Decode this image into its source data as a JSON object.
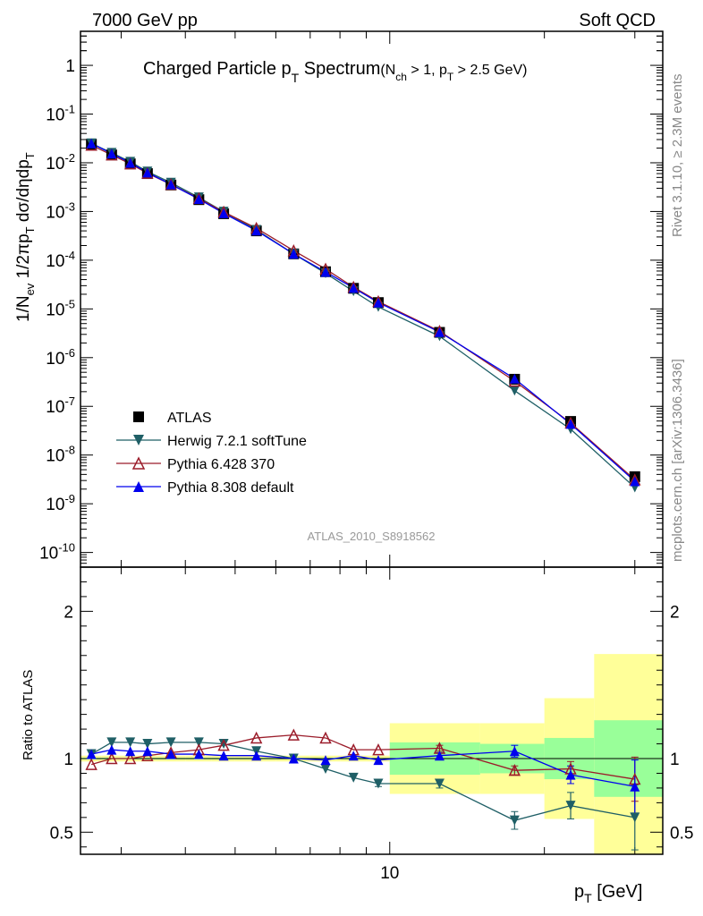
{
  "header": {
    "left": "7000 GeV pp",
    "right": "Soft QCD"
  },
  "title": {
    "main_pre": "Charged Particle p",
    "main_sub": "T",
    "main_post": " Spectrum",
    "cond_a": "(N",
    "cond_a_sub": "ch",
    "cond_b": " > 1, p",
    "cond_b_sub": "T",
    "cond_c": " > 2.5 GeV)"
  },
  "side_labels": {
    "rivet": "Rivet 3.1.10, ≥ 2.3M events",
    "mcplots": "mcplots.cern.ch [arXiv:1306.3436]"
  },
  "analysis_id": "ATLAS_2010_S8918562",
  "ylabel_main": "1/N_ev 1/2πp_T dσ/dηdp_T",
  "ylabel_ratio": "Ratio to ATLAS",
  "xlabel": "p_T  [GeV]",
  "legend": [
    {
      "label": "ATLAS",
      "marker": "square",
      "color": "#000000"
    },
    {
      "label": "Herwig 7.2.1 softTune",
      "marker": "triangle-down",
      "color": "#1f5f66"
    },
    {
      "label": "Pythia 6.428 370",
      "marker": "triangle-open",
      "color": "#9b1c2a"
    },
    {
      "label": "Pythia 8.308 default",
      "marker": "triangle-up",
      "color": "#0000ee"
    }
  ],
  "chart_data": {
    "type": "scatter",
    "x_scale": "log",
    "y_scale": "log",
    "xlim": [
      2.5,
      34
    ],
    "ylim": [
      5e-11,
      5
    ],
    "ratio_ylim": [
      0.35,
      2.3
    ],
    "x_tick_labels": [
      "10"
    ],
    "y_tick_labels": [
      "1",
      "10^-1",
      "10^-2",
      "10^-3",
      "10^-4",
      "10^-5",
      "10^-6",
      "10^-7",
      "10^-8",
      "10^-9",
      "10^-10"
    ],
    "ratio_tick_labels": [
      "2",
      "1",
      "0.5"
    ],
    "x": [
      2.625,
      2.875,
      3.125,
      3.375,
      3.75,
      4.25,
      4.75,
      5.5,
      6.5,
      7.5,
      8.5,
      9.5,
      12.5,
      17.5,
      22.5,
      30
    ],
    "series": [
      {
        "name": "ATLAS",
        "values": [
          0.024,
          0.0145,
          0.0095,
          0.006,
          0.0035,
          0.00175,
          0.0009,
          0.0004,
          0.000135,
          5.8e-05,
          2.65e-05,
          1.35e-05,
          3.3e-06,
          3.6e-07,
          4.9e-08,
          3.6e-09
        ]
      },
      {
        "name": "Herwig 7.2.1 softTune",
        "values": [
          0.025,
          0.016,
          0.0105,
          0.0066,
          0.0039,
          0.00195,
          0.00099,
          0.00042,
          0.000135,
          5.4e-05,
          2.3e-05,
          1.1e-05,
          2.75e-06,
          2.1e-07,
          3.4e-08,
          2.15e-09
        ]
      },
      {
        "name": "Pythia 6.428 370",
        "values": [
          0.023,
          0.0145,
          0.0095,
          0.0061,
          0.0036,
          0.00185,
          0.00098,
          0.000455,
          0.000157,
          6.6e-05,
          2.8e-05,
          1.42e-05,
          3.5e-06,
          3.3e-07,
          4.55e-08,
          3.1e-09
        ]
      },
      {
        "name": "Pythia 8.308 default",
        "values": [
          0.025,
          0.0155,
          0.01,
          0.0063,
          0.0036,
          0.0018,
          0.00092,
          0.000405,
          0.000135,
          5.75e-05,
          2.7e-05,
          1.35e-05,
          3.35e-06,
          3.7e-07,
          4.35e-08,
          2.9e-09
        ]
      }
    ],
    "ratio_series": [
      {
        "name": "Herwig 7.2.1 softTune",
        "values": [
          1.03,
          1.11,
          1.11,
          1.1,
          1.11,
          1.11,
          1.1,
          1.05,
          1.0,
          0.93,
          0.87,
          0.83,
          0.83,
          0.58,
          0.68,
          0.6
        ],
        "errors": [
          0.01,
          0.01,
          0.01,
          0.01,
          0.01,
          0.01,
          0.01,
          0.01,
          0.01,
          0.01,
          0.01,
          0.02,
          0.03,
          0.06,
          0.09,
          0.22
        ]
      },
      {
        "name": "Pythia 6.428 370",
        "values": [
          0.96,
          1.0,
          1.0,
          1.02,
          1.04,
          1.06,
          1.09,
          1.14,
          1.16,
          1.14,
          1.06,
          1.06,
          1.07,
          0.92,
          0.93,
          0.86
        ],
        "errors": [
          0.01,
          0.01,
          0.01,
          0.01,
          0.01,
          0.01,
          0.01,
          0.01,
          0.01,
          0.01,
          0.01,
          0.01,
          0.02,
          0.03,
          0.05,
          0.15
        ]
      },
      {
        "name": "Pythia 8.308 default",
        "values": [
          1.03,
          1.06,
          1.05,
          1.05,
          1.03,
          1.03,
          1.02,
          1.02,
          1.0,
          0.99,
          1.02,
          0.99,
          1.02,
          1.05,
          0.89,
          0.81
        ],
        "errors": [
          0.01,
          0.01,
          0.01,
          0.01,
          0.01,
          0.01,
          0.01,
          0.01,
          0.01,
          0.01,
          0.01,
          0.01,
          0.02,
          0.04,
          0.06,
          0.18
        ]
      }
    ],
    "data_uncertainty_bands": {
      "x_edges": [
        2.5,
        2.75,
        3.0,
        3.25,
        3.5,
        4.0,
        4.5,
        5.0,
        6.0,
        7.0,
        8.0,
        9.0,
        10.0,
        15.0,
        20.0,
        25.0,
        35.0
      ],
      "stat_half_width": [
        0.005,
        0.005,
        0.005,
        0.005,
        0.005,
        0.005,
        0.005,
        0.005,
        0.005,
        0.005,
        0.005,
        0.005,
        0.11,
        0.1,
        0.14,
        0.26
      ],
      "total_half_width": [
        0.02,
        0.02,
        0.02,
        0.02,
        0.02,
        0.02,
        0.02,
        0.02,
        0.02,
        0.02,
        0.02,
        0.02,
        0.24,
        0.24,
        0.41,
        0.71
      ]
    },
    "grid": false,
    "legend_position": "lower-left"
  }
}
